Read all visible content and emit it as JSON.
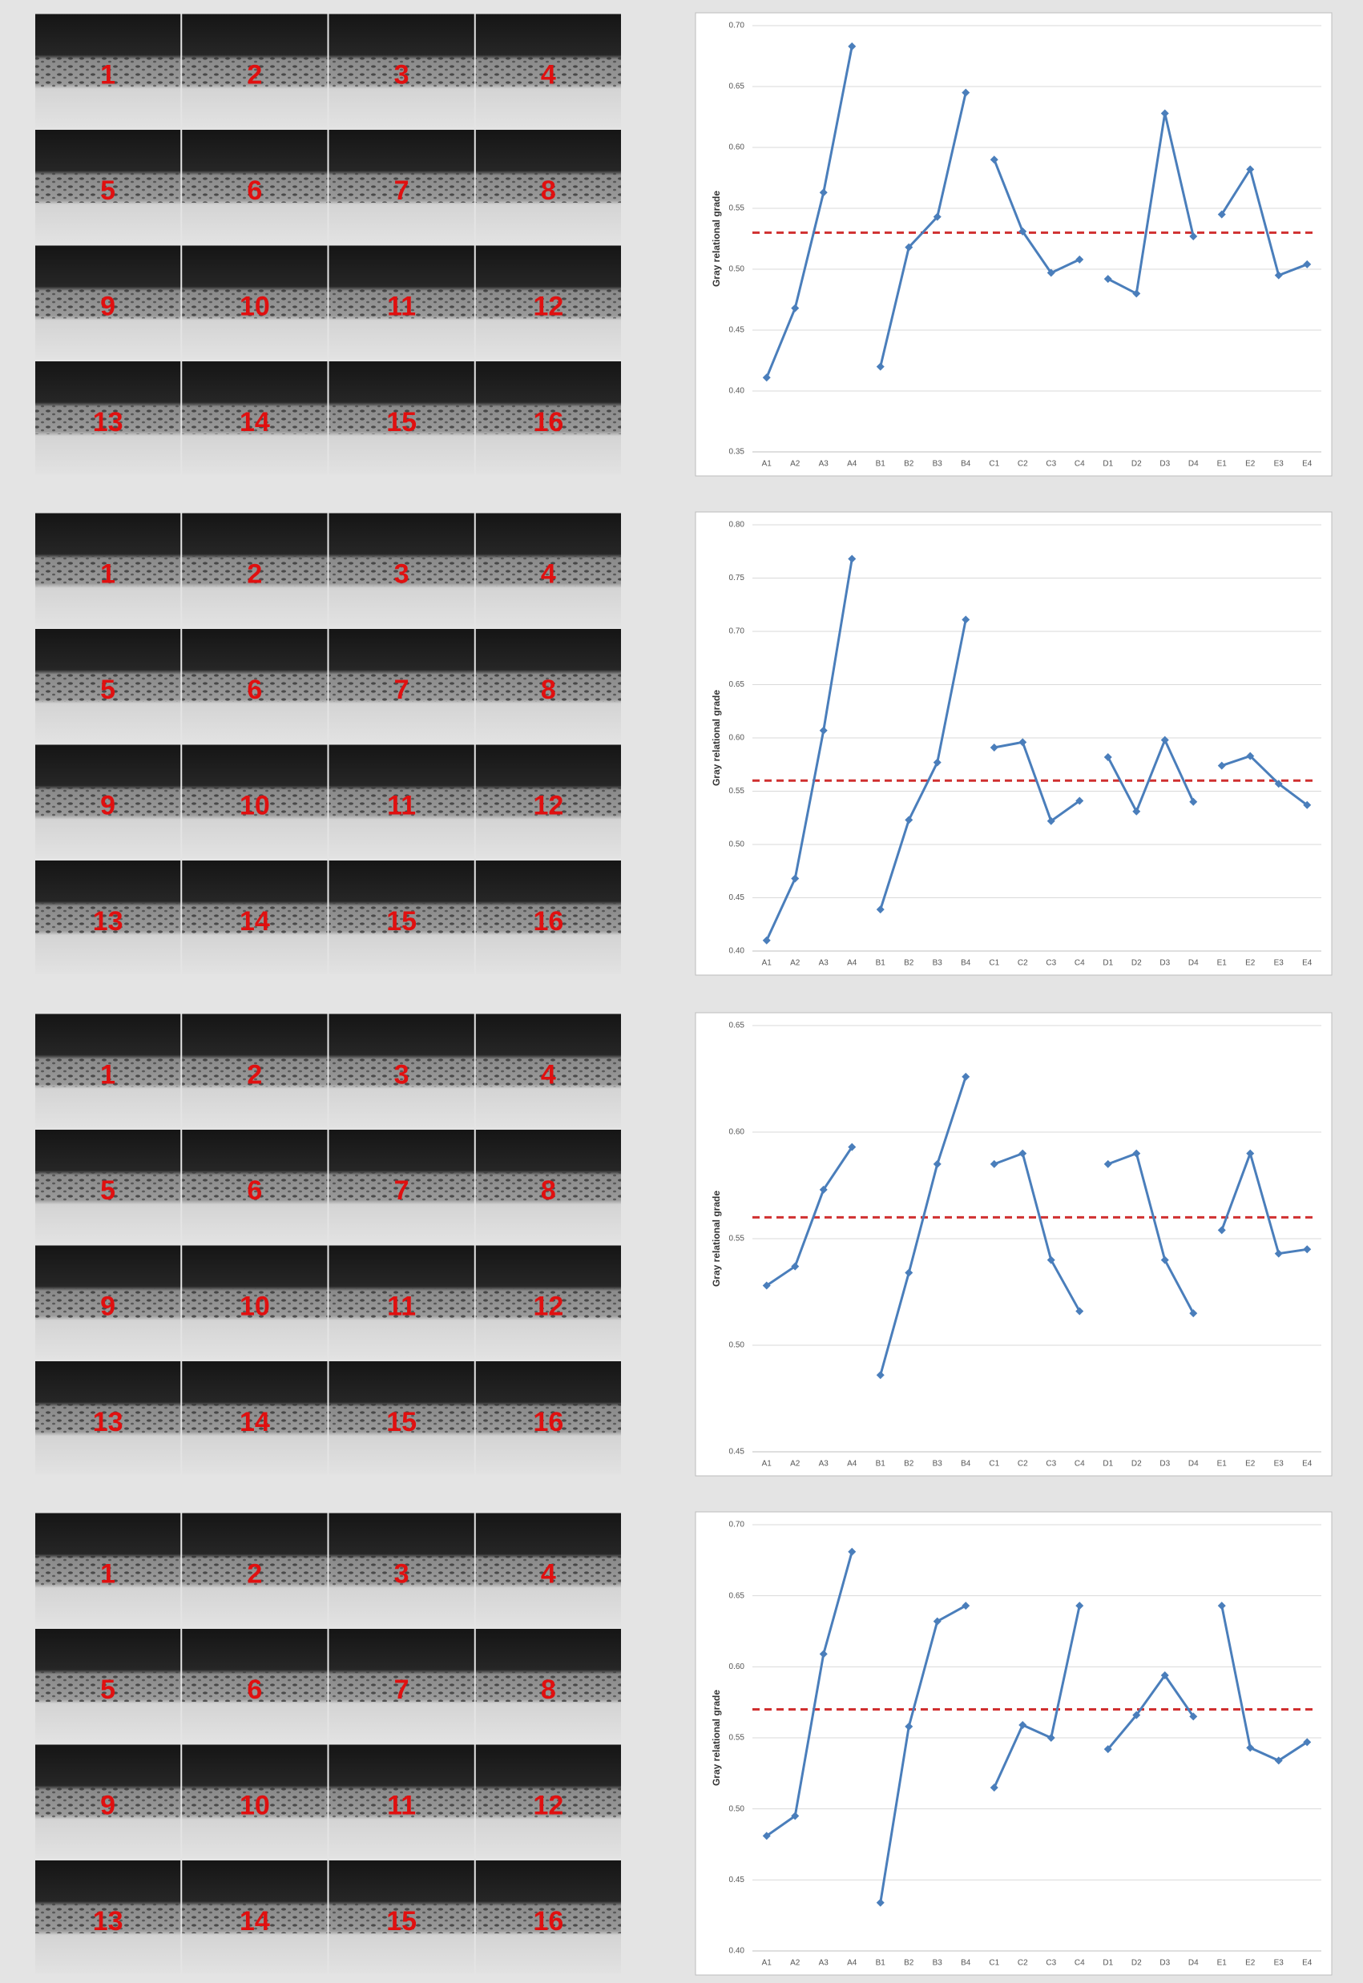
{
  "micrograph_panels": [
    {
      "labels": [
        "1",
        "2",
        "3",
        "4",
        "5",
        "6",
        "7",
        "8",
        "9",
        "10",
        "11",
        "12",
        "13",
        "14",
        "15",
        "16"
      ]
    },
    {
      "labels": [
        "1",
        "2",
        "3",
        "4",
        "5",
        "6",
        "7",
        "8",
        "9",
        "10",
        "11",
        "12",
        "13",
        "14",
        "15",
        "16"
      ]
    },
    {
      "labels": [
        "1",
        "2",
        "3",
        "4",
        "5",
        "6",
        "7",
        "8",
        "9",
        "10",
        "11",
        "12",
        "13",
        "14",
        "15",
        "16"
      ]
    },
    {
      "labels": [
        "1",
        "2",
        "3",
        "4",
        "5",
        "6",
        "7",
        "8",
        "9",
        "10",
        "11",
        "12",
        "13",
        "14",
        "15",
        "16"
      ]
    }
  ],
  "chart_data": [
    {
      "type": "line",
      "y_label": "Gray relational grade",
      "categories": [
        "A1",
        "A2",
        "A3",
        "A4",
        "B1",
        "B2",
        "B3",
        "B4",
        "C1",
        "C2",
        "C3",
        "C4",
        "D1",
        "D2",
        "D3",
        "D4",
        "E1",
        "E2",
        "E3",
        "E4"
      ],
      "values": [
        0.411,
        0.468,
        0.563,
        0.683,
        0.42,
        0.518,
        0.543,
        0.645,
        0.59,
        0.531,
        0.497,
        0.508,
        0.492,
        0.48,
        0.628,
        0.527,
        0.545,
        0.582,
        0.495,
        0.504
      ],
      "color": "#4a7ebb",
      "ylim": [
        0.35,
        0.7
      ],
      "yticks": [
        0.35,
        {
          "value": 0.4,
          "label": "0.40"
        },
        0.45,
        {
          "value": 0.5,
          "label": "0.50"
        },
        0.55,
        {
          "value": 0.6,
          "label": "0.60"
        },
        0.65,
        {
          "value": 0.7,
          "label": "0.70"
        }
      ],
      "grid": true,
      "reference_line": 0.53,
      "reference_color": "#d03030"
    },
    {
      "type": "line",
      "y_label": "Gray relational grade",
      "categories": [
        "A1",
        "A2",
        "A3",
        "A4",
        "B1",
        "B2",
        "B3",
        "B4",
        "C1",
        "C2",
        "C3",
        "C4",
        "D1",
        "D2",
        "D3",
        "D4",
        "E1",
        "E2",
        "E3",
        "E4"
      ],
      "values": [
        0.41,
        0.468,
        0.607,
        0.768,
        0.439,
        0.523,
        0.577,
        0.711,
        0.591,
        0.596,
        0.522,
        0.541,
        0.582,
        0.531,
        0.598,
        0.54,
        0.574,
        0.583,
        0.557,
        0.537
      ],
      "color": "#4a7ebb",
      "ylim": [
        0.4,
        0.8
      ],
      "yticks": [
        {
          "value": 0.4,
          "label": "0.40"
        },
        0.45,
        {
          "value": 0.5,
          "label": "0.50"
        },
        0.55,
        {
          "value": 0.6,
          "label": "0.60"
        },
        0.65,
        {
          "value": 0.7,
          "label": "0.70"
        },
        0.75,
        {
          "value": 0.8,
          "label": "0.80"
        }
      ],
      "grid": true,
      "reference_line": 0.56,
      "reference_color": "#d03030"
    },
    {
      "type": "line",
      "y_label": "Gray relational grade",
      "categories": [
        "A1",
        "A2",
        "A3",
        "A4",
        "B1",
        "B2",
        "B3",
        "B4",
        "C1",
        "C2",
        "C3",
        "C4",
        "D1",
        "D2",
        "D3",
        "D4",
        "E1",
        "E2",
        "E3",
        "E4"
      ],
      "values": [
        0.528,
        0.537,
        0.573,
        0.593,
        0.486,
        0.534,
        0.585,
        0.626,
        0.585,
        0.59,
        0.54,
        0.516,
        0.585,
        0.59,
        0.54,
        0.515,
        0.554,
        0.59,
        0.543,
        0.545
      ],
      "color": "#4a7ebb",
      "ylim": [
        0.45,
        0.65
      ],
      "yticks": [
        0.45,
        {
          "value": 0.5,
          "label": "0.50"
        },
        0.55,
        {
          "value": 0.6,
          "label": "0.60"
        },
        0.65
      ],
      "grid": true,
      "reference_line": 0.56,
      "reference_color": "#d03030"
    },
    {
      "type": "line",
      "y_label": "Gray relational grade",
      "categories": [
        "A1",
        "A2",
        "A3",
        "A4",
        "B1",
        "B2",
        "B3",
        "B4",
        "C1",
        "C2",
        "C3",
        "C4",
        "D1",
        "D2",
        "D3",
        "D4",
        "E1",
        "E2",
        "E3",
        "E4"
      ],
      "values": [
        0.481,
        0.495,
        0.609,
        0.681,
        0.434,
        0.558,
        0.632,
        0.643,
        0.515,
        0.559,
        0.55,
        0.643,
        0.542,
        0.566,
        0.594,
        0.565,
        0.643,
        0.543,
        0.534,
        0.547
      ],
      "color": "#4a7ebb",
      "ylim": [
        0.4,
        0.7
      ],
      "yticks": [
        {
          "value": 0.4,
          "label": "0.40"
        },
        0.45,
        {
          "value": 0.5,
          "label": "0.50"
        },
        0.55,
        {
          "value": 0.6,
          "label": "0.60"
        },
        0.65,
        {
          "value": 0.7,
          "label": "0.70"
        }
      ],
      "grid": true,
      "reference_line": 0.57,
      "reference_color": "#d03030"
    }
  ]
}
